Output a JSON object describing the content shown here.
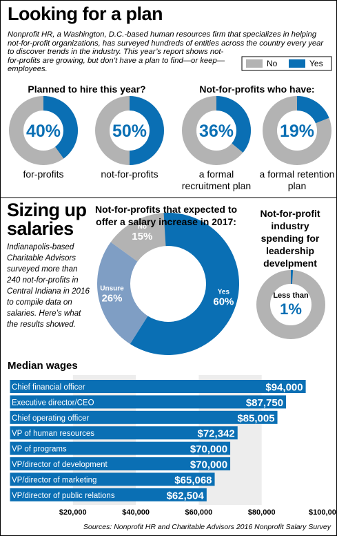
{
  "title": "Looking for a plan",
  "intro": "Nonprofit HR, a Washington, D.C.-based human resources firm that specializes in helping not-for-profit organizations, has surveyed hundreds of entities across the country every year to discover trends in the industry. This year’s report shows not-for-profits are growing, but don’t have a plan to find—or keep—employees.",
  "legend": [
    {
      "name": "No",
      "color": "#b3b3b3"
    },
    {
      "name": "Yes",
      "color": "#0a6fb4"
    }
  ],
  "sizing": {
    "title": "Sizing up salaries",
    "text": "Indianapolis-based Charitable Advisors surveyed more than 240 not-for-profits in Central Indiana in 2016 to compile data on salaries. Here’s what the results showed."
  },
  "chart_data": [
    {
      "type": "donut",
      "title": "Planned to hire this year?",
      "label": "for-profits",
      "value": 40,
      "value_label": "40%",
      "color": "#0a6fb4",
      "rest_color": "#b3b3b3"
    },
    {
      "type": "donut",
      "label": "not-for-profits",
      "value": 50,
      "value_label": "50%",
      "color": "#0a6fb4",
      "rest_color": "#b3b3b3"
    },
    {
      "type": "donut",
      "title": "Not-for-profits who have:",
      "label": "a formal recruitment plan",
      "value": 36,
      "value_label": "36%",
      "color": "#0a6fb4",
      "rest_color": "#b3b3b3"
    },
    {
      "type": "donut",
      "label": "a formal retention plan",
      "value": 19,
      "value_label": "19%",
      "color": "#0a6fb4",
      "rest_color": "#b3b3b3"
    },
    {
      "type": "pie",
      "title": "Not-for-profits that expected to offer a salary increase in 2017:",
      "categories": [
        "No",
        "Unsure",
        "Yes"
      ],
      "values": [
        15,
        26,
        60
      ],
      "value_labels": [
        "15%",
        "26%",
        "60%"
      ],
      "colors": [
        "#b3b3b3",
        "#7f9ec4",
        "#0a6fb4"
      ]
    },
    {
      "type": "donut",
      "title": "Not-for-profit industry spending for leadership develpment",
      "center_note": "Less than",
      "value": 1,
      "value_label": "1%",
      "color": "#0a6fb4",
      "rest_color": "#b3b3b3"
    },
    {
      "type": "hbar",
      "title": "Median wages",
      "categories": [
        "Chief financial officer",
        "Executive director/CEO",
        "Chief operating officer",
        "VP of human resources",
        "VP of programs",
        "VP/director of development",
        "VP/director of marketing",
        "VP/director of public relations"
      ],
      "values": [
        94000,
        87750,
        85005,
        72342,
        70000,
        70000,
        65068,
        62504
      ],
      "value_labels": [
        "$94,000",
        "$87,750",
        "$85,005",
        "$72,342",
        "$70,000",
        "$70,000",
        "$65,068",
        "$62,504"
      ],
      "color": "#0a6fb4",
      "xlim": [
        0,
        100000
      ],
      "xticks": [
        {
          "value": 20000,
          "label": "$20,000"
        },
        {
          "value": 40000,
          "label": "$40,000"
        },
        {
          "value": 60000,
          "label": "$60,000"
        },
        {
          "value": 80000,
          "label": "$80,000"
        },
        {
          "value": 100000,
          "label": "$100,000"
        }
      ]
    }
  ],
  "sources": "Sources: Nonprofit HR and Charitable Advisors 2016 Nonprofit Salary Survey"
}
